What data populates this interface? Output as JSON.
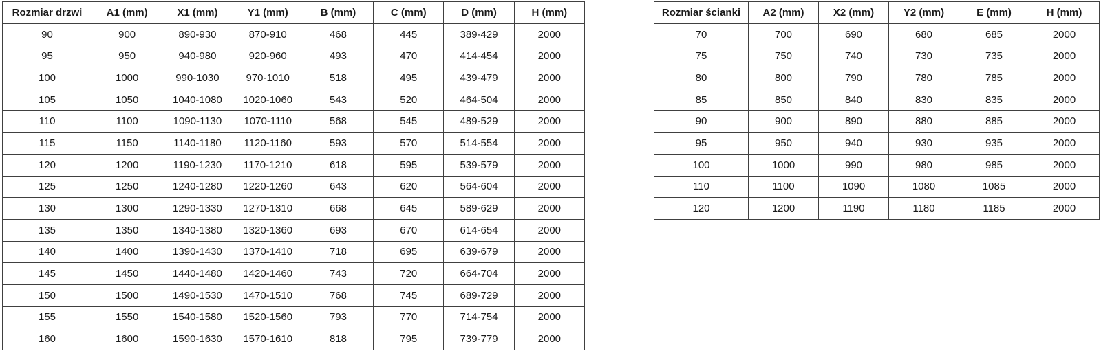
{
  "colors": {
    "border": "#404040",
    "text": "#1a1a1a",
    "background": "#ffffff"
  },
  "tables": [
    {
      "name": "door-size-table",
      "headers": [
        "Rozmiar drzwi",
        "A1 (mm)",
        "X1 (mm)",
        "Y1 (mm)",
        "B (mm)",
        "C (mm)",
        "D (mm)",
        "H (mm)"
      ],
      "rows": [
        [
          "90",
          "900",
          "890-930",
          "870-910",
          "468",
          "445",
          "389-429",
          "2000"
        ],
        [
          "95",
          "950",
          "940-980",
          "920-960",
          "493",
          "470",
          "414-454",
          "2000"
        ],
        [
          "100",
          "1000",
          "990-1030",
          "970-1010",
          "518",
          "495",
          "439-479",
          "2000"
        ],
        [
          "105",
          "1050",
          "1040-1080",
          "1020-1060",
          "543",
          "520",
          "464-504",
          "2000"
        ],
        [
          "110",
          "1100",
          "1090-1130",
          "1070-1110",
          "568",
          "545",
          "489-529",
          "2000"
        ],
        [
          "115",
          "1150",
          "1140-1180",
          "1120-1160",
          "593",
          "570",
          "514-554",
          "2000"
        ],
        [
          "120",
          "1200",
          "1190-1230",
          "1170-1210",
          "618",
          "595",
          "539-579",
          "2000"
        ],
        [
          "125",
          "1250",
          "1240-1280",
          "1220-1260",
          "643",
          "620",
          "564-604",
          "2000"
        ],
        [
          "130",
          "1300",
          "1290-1330",
          "1270-1310",
          "668",
          "645",
          "589-629",
          "2000"
        ],
        [
          "135",
          "1350",
          "1340-1380",
          "1320-1360",
          "693",
          "670",
          "614-654",
          "2000"
        ],
        [
          "140",
          "1400",
          "1390-1430",
          "1370-1410",
          "718",
          "695",
          "639-679",
          "2000"
        ],
        [
          "145",
          "1450",
          "1440-1480",
          "1420-1460",
          "743",
          "720",
          "664-704",
          "2000"
        ],
        [
          "150",
          "1500",
          "1490-1530",
          "1470-1510",
          "768",
          "745",
          "689-729",
          "2000"
        ],
        [
          "155",
          "1550",
          "1540-1580",
          "1520-1560",
          "793",
          "770",
          "714-754",
          "2000"
        ],
        [
          "160",
          "1600",
          "1590-1630",
          "1570-1610",
          "818",
          "795",
          "739-779",
          "2000"
        ]
      ]
    },
    {
      "name": "wall-size-table",
      "headers": [
        "Rozmiar ścianki",
        "A2 (mm)",
        "X2 (mm)",
        "Y2 (mm)",
        "E (mm)",
        "H (mm)"
      ],
      "rows": [
        [
          "70",
          "700",
          "690",
          "680",
          "685",
          "2000"
        ],
        [
          "75",
          "750",
          "740",
          "730",
          "735",
          "2000"
        ],
        [
          "80",
          "800",
          "790",
          "780",
          "785",
          "2000"
        ],
        [
          "85",
          "850",
          "840",
          "830",
          "835",
          "2000"
        ],
        [
          "90",
          "900",
          "890",
          "880",
          "885",
          "2000"
        ],
        [
          "95",
          "950",
          "940",
          "930",
          "935",
          "2000"
        ],
        [
          "100",
          "1000",
          "990",
          "980",
          "985",
          "2000"
        ],
        [
          "110",
          "1100",
          "1090",
          "1080",
          "1085",
          "2000"
        ],
        [
          "120",
          "1200",
          "1190",
          "1180",
          "1185",
          "2000"
        ]
      ]
    }
  ]
}
